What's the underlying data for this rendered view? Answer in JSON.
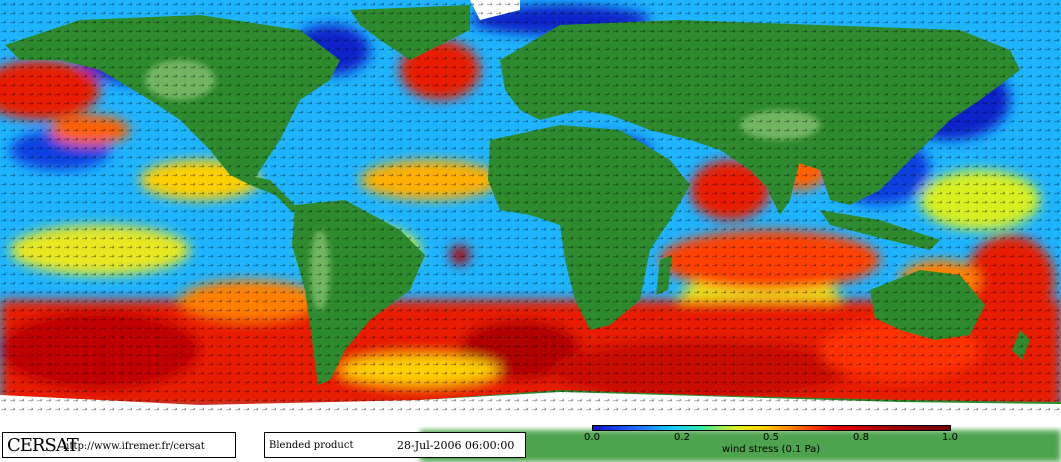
{
  "map": {
    "type": "global wind stress",
    "colors": {
      "ocean_calm": "#0a14c8",
      "ocean_low": "#19b4ff",
      "ocean_mid": "#e6e61e",
      "ocean_high": "#e61e00",
      "land": "#2e8a2e",
      "ice": "#ffffff"
    }
  },
  "logo": "CERSAT",
  "url": "http://www.ifremer.fr/cersat",
  "product": "Blended product",
  "date": "28-Jul-2006 06:00:00",
  "colorbar": {
    "ticks": [
      "0.0",
      "0.2",
      "0.5",
      "0.8",
      "1.0"
    ],
    "label": "wind stress (0.1 Pa)"
  }
}
